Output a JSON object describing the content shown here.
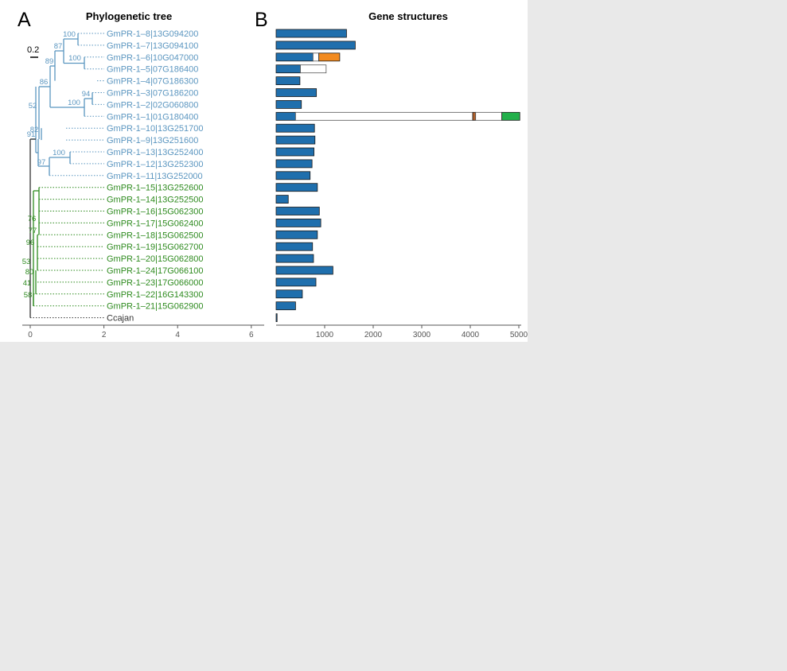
{
  "panel_a": {
    "letter": "A",
    "title": "Phylogenetic tree",
    "scale_label": "0.2",
    "x_ticks": [
      0,
      2,
      4,
      6
    ],
    "colors": {
      "blue_clade": "#5b96c0",
      "green_clade": "#2e8b1f",
      "root": "#333333"
    }
  },
  "panel_b": {
    "letter": "B",
    "title": "Gene structures",
    "x_ticks": [
      1000,
      2000,
      3000,
      4000,
      5000
    ],
    "xlim": [
      0,
      5000
    ],
    "colors": {
      "exon": "#1f6fad",
      "orange_feature": "#f28a1e",
      "brown_feature": "#b3622c",
      "green_feature": "#22b04b",
      "intron": "#ffffff"
    }
  },
  "tree_data": {
    "taxa": [
      {
        "name": "GmPR-1–8|13G094200",
        "clade": "blue"
      },
      {
        "name": "GmPR-1–7|13G094100",
        "clade": "blue"
      },
      {
        "name": "GmPR-1–6|10G047000",
        "clade": "blue"
      },
      {
        "name": "GmPR-1–5|07G186400",
        "clade": "blue"
      },
      {
        "name": "GmPR-1–4|07G186300",
        "clade": "blue"
      },
      {
        "name": "GmPR-1–3|07G186200",
        "clade": "blue"
      },
      {
        "name": "GmPR-1–2|02G060800",
        "clade": "blue"
      },
      {
        "name": "GmPR-1–1|01G180400",
        "clade": "blue"
      },
      {
        "name": "GmPR-1–10|13G251700",
        "clade": "blue"
      },
      {
        "name": "GmPR-1–9|13G251600",
        "clade": "blue"
      },
      {
        "name": "GmPR-1–13|13G252400",
        "clade": "blue"
      },
      {
        "name": "GmPR-1–12|13G252300",
        "clade": "blue"
      },
      {
        "name": "GmPR-1–11|13G252000",
        "clade": "blue"
      },
      {
        "name": "GmPR-1–15|13G252600",
        "clade": "green"
      },
      {
        "name": "GmPR-1–14|13G252500",
        "clade": "green"
      },
      {
        "name": "GmPR-1–16|15G062300",
        "clade": "green"
      },
      {
        "name": "GmPR-1–17|15G062400",
        "clade": "green"
      },
      {
        "name": "GmPR-1–18|15G062500",
        "clade": "green"
      },
      {
        "name": "GmPR-1–19|15G062700",
        "clade": "green"
      },
      {
        "name": "GmPR-1–20|15G062800",
        "clade": "green"
      },
      {
        "name": "GmPR-1–24|17G066100",
        "clade": "green"
      },
      {
        "name": "GmPR-1–23|17G066000",
        "clade": "green"
      },
      {
        "name": "GmPR-1–22|16G143300",
        "clade": "green"
      },
      {
        "name": "GmPR-1–21|15G062900",
        "clade": "green"
      },
      {
        "name": "Ccajan",
        "clade": "root"
      }
    ],
    "bootstrap_values": [
      "100",
      "87",
      "100",
      "89",
      "86",
      "94",
      "100",
      "52",
      "82",
      "91",
      "100",
      "97",
      "76",
      "77",
      "96",
      "53",
      "80",
      "41",
      "58"
    ]
  },
  "chart_data": {
    "type": "bar",
    "title": "Gene structures",
    "xlim": [
      0,
      5000
    ],
    "x_ticks": [
      1000,
      2000,
      3000,
      4000,
      5000
    ],
    "genes": [
      {
        "segments": [
          {
            "start": 0,
            "end": 1450,
            "kind": "exon"
          }
        ]
      },
      {
        "segments": [
          {
            "start": 0,
            "end": 1630,
            "kind": "exon"
          }
        ]
      },
      {
        "segments": [
          {
            "start": 0,
            "end": 760,
            "kind": "exon"
          },
          {
            "start": 760,
            "end": 880,
            "kind": "intron"
          },
          {
            "start": 880,
            "end": 1310,
            "kind": "orange"
          }
        ]
      },
      {
        "segments": [
          {
            "start": 0,
            "end": 500,
            "kind": "exon"
          },
          {
            "start": 500,
            "end": 1030,
            "kind": "intron"
          }
        ]
      },
      {
        "segments": [
          {
            "start": 0,
            "end": 490,
            "kind": "exon"
          }
        ]
      },
      {
        "segments": [
          {
            "start": 0,
            "end": 830,
            "kind": "exon"
          }
        ]
      },
      {
        "segments": [
          {
            "start": 0,
            "end": 520,
            "kind": "exon"
          }
        ]
      },
      {
        "segments": [
          {
            "start": 0,
            "end": 400,
            "kind": "exon"
          },
          {
            "start": 400,
            "end": 4050,
            "kind": "intron"
          },
          {
            "start": 4050,
            "end": 4110,
            "kind": "brown"
          },
          {
            "start": 4110,
            "end": 4650,
            "kind": "intron"
          },
          {
            "start": 4650,
            "end": 5020,
            "kind": "green"
          }
        ]
      },
      {
        "segments": [
          {
            "start": 0,
            "end": 790,
            "kind": "exon"
          }
        ]
      },
      {
        "segments": [
          {
            "start": 0,
            "end": 800,
            "kind": "exon"
          }
        ]
      },
      {
        "segments": [
          {
            "start": 0,
            "end": 780,
            "kind": "exon"
          }
        ]
      },
      {
        "segments": [
          {
            "start": 0,
            "end": 740,
            "kind": "exon"
          }
        ]
      },
      {
        "segments": [
          {
            "start": 0,
            "end": 700,
            "kind": "exon"
          }
        ]
      },
      {
        "segments": [
          {
            "start": 0,
            "end": 850,
            "kind": "exon"
          }
        ]
      },
      {
        "segments": [
          {
            "start": 0,
            "end": 250,
            "kind": "exon"
          }
        ]
      },
      {
        "segments": [
          {
            "start": 0,
            "end": 890,
            "kind": "exon"
          }
        ]
      },
      {
        "segments": [
          {
            "start": 0,
            "end": 920,
            "kind": "exon"
          }
        ]
      },
      {
        "segments": [
          {
            "start": 0,
            "end": 850,
            "kind": "exon"
          }
        ]
      },
      {
        "segments": [
          {
            "start": 0,
            "end": 750,
            "kind": "exon"
          }
        ]
      },
      {
        "segments": [
          {
            "start": 0,
            "end": 770,
            "kind": "exon"
          }
        ]
      },
      {
        "segments": [
          {
            "start": 0,
            "end": 1170,
            "kind": "exon"
          }
        ]
      },
      {
        "segments": [
          {
            "start": 0,
            "end": 820,
            "kind": "exon"
          }
        ]
      },
      {
        "segments": [
          {
            "start": 0,
            "end": 540,
            "kind": "exon"
          }
        ]
      },
      {
        "segments": [
          {
            "start": 0,
            "end": 400,
            "kind": "exon"
          }
        ]
      },
      {
        "segments": [
          {
            "start": 0,
            "end": 20,
            "kind": "exon"
          }
        ]
      }
    ]
  }
}
